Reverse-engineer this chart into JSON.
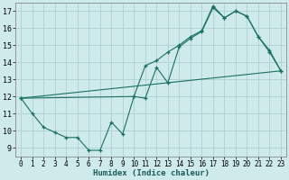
{
  "xlabel": "Humidex (Indice chaleur)",
  "background_color": "#ceeaea",
  "grid_color": "#add0d0",
  "line_color": "#1a7060",
  "xlim": [
    -0.5,
    23.5
  ],
  "ylim": [
    8.5,
    17.5
  ],
  "xticks": [
    0,
    1,
    2,
    3,
    4,
    5,
    6,
    7,
    8,
    9,
    10,
    11,
    12,
    13,
    14,
    15,
    16,
    17,
    18,
    19,
    20,
    21,
    22,
    23
  ],
  "yticks": [
    9,
    10,
    11,
    12,
    13,
    14,
    15,
    16,
    17
  ],
  "line1_x": [
    0,
    1,
    2,
    3,
    4,
    5,
    6,
    7,
    8,
    9,
    10,
    11,
    12,
    13,
    14,
    15,
    16,
    17,
    18,
    19,
    20,
    21,
    22,
    23
  ],
  "line1_y": [
    11.9,
    11.0,
    10.2,
    9.9,
    9.6,
    9.6,
    8.85,
    8.85,
    10.5,
    9.8,
    12.0,
    11.9,
    13.7,
    12.8,
    14.9,
    15.4,
    15.8,
    17.2,
    16.6,
    17.0,
    16.7,
    15.5,
    14.6,
    13.5
  ],
  "line2_x": [
    0,
    23
  ],
  "line2_y": [
    11.9,
    13.5
  ],
  "line3_x": [
    0,
    10,
    11,
    12,
    13,
    14,
    15,
    16,
    17,
    18,
    19,
    20,
    21,
    22,
    23
  ],
  "line3_y": [
    11.9,
    12.0,
    13.8,
    14.1,
    14.6,
    15.0,
    15.5,
    15.85,
    17.3,
    16.6,
    17.0,
    16.7,
    15.5,
    14.7,
    13.5
  ]
}
